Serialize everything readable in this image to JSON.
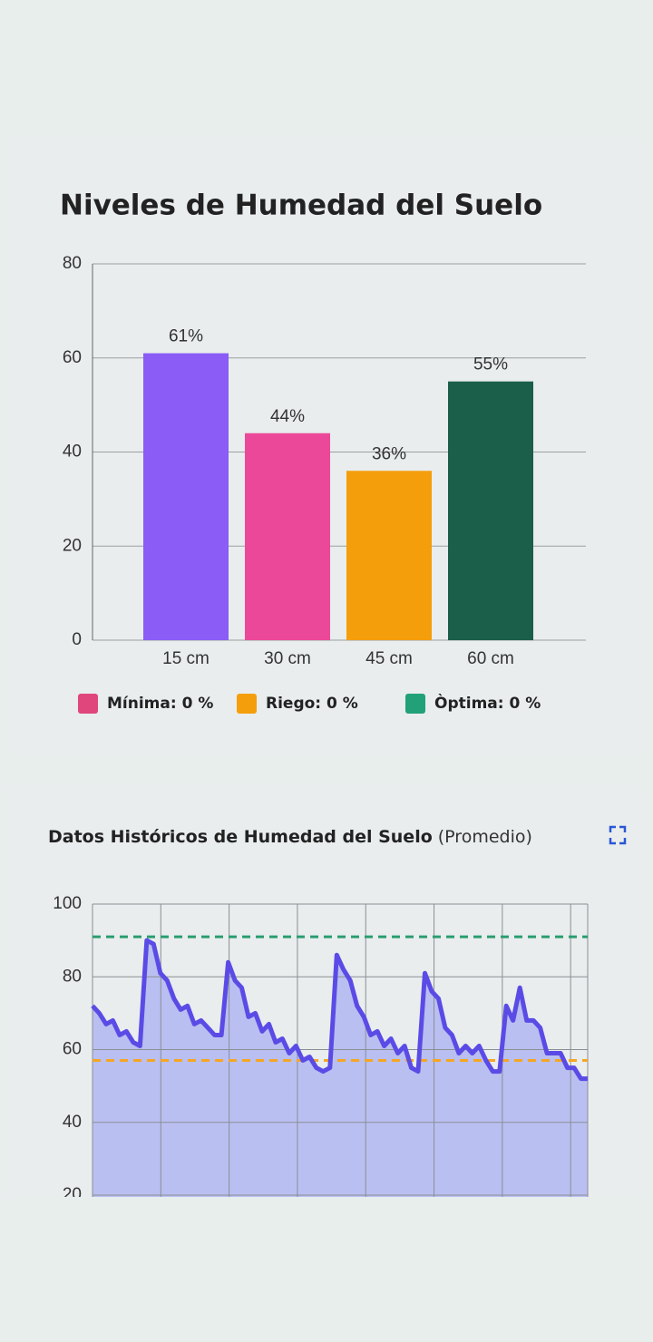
{
  "chart_data": [
    {
      "type": "bar",
      "title": "Niveles de Humedad del Suelo",
      "categories": [
        "15 cm",
        "30 cm",
        "45 cm",
        "60 cm"
      ],
      "values": [
        61,
        44,
        36,
        55
      ],
      "value_labels": [
        "61%",
        "44%",
        "36%",
        "55%"
      ],
      "colors": [
        "#8b5cf6",
        "#ec4899",
        "#f59e0b",
        "#1b5e4a"
      ],
      "ylim": [
        0,
        80
      ],
      "yticks": [
        0,
        20,
        40,
        60,
        80
      ],
      "grid": true,
      "legend_items": [
        {
          "label": "Mínima: 0 %",
          "color": "#e0457b",
          "text_color": "#d0306a"
        },
        {
          "label": "Riego: 0 %",
          "color": "#f59e0b",
          "text_color": "#e8920a"
        },
        {
          "label": "Òptima: 0 %",
          "color": "#22a077",
          "text_color": "#1f7a5a"
        }
      ]
    },
    {
      "type": "area",
      "title": "Datos Históricos de Humedad del Suelo",
      "subtitle": "(Promedio)",
      "values": [
        72,
        70,
        67,
        68,
        64,
        65,
        62,
        61,
        90,
        89,
        81,
        79,
        74,
        71,
        72,
        67,
        68,
        66,
        64,
        64,
        84,
        79,
        77,
        69,
        70,
        65,
        67,
        62,
        63,
        59,
        61,
        57,
        58,
        55,
        54,
        55,
        86,
        82,
        79,
        72,
        69,
        64,
        65,
        61,
        63,
        59,
        61,
        55,
        54,
        81,
        76,
        74,
        66,
        64,
        59,
        61,
        59,
        61,
        57,
        54,
        54,
        72,
        68,
        77,
        68,
        68,
        66,
        59,
        59,
        59,
        55,
        55,
        52,
        52
      ],
      "color": "#5b4be6",
      "fill": "#b9bff0",
      "ylim": [
        20,
        100
      ],
      "yticks": [
        20,
        40,
        60,
        80,
        100
      ],
      "grid": true,
      "reference_lines": [
        {
          "value": 91,
          "color": "#2a9d6f"
        },
        {
          "value": 57,
          "color": "#f5a623"
        }
      ]
    }
  ]
}
